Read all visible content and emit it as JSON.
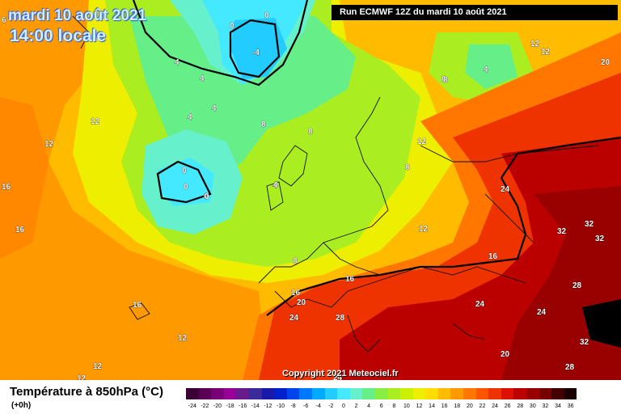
{
  "header": {
    "date_line": "mardi 10 août 2021",
    "time_line": "14:00 locale",
    "run_info": "Run ECMWF 12Z du mardi 10 août 2021"
  },
  "footer": {
    "copyright": "Copyright 2021 Meteociel.fr"
  },
  "legend": {
    "title": "Température à 850hPa (°C)",
    "subtitle": "(+0h)",
    "scale": [
      {
        "label": "-24",
        "color": "#3a0033"
      },
      {
        "label": "-22",
        "color": "#5a0055"
      },
      {
        "label": "-20",
        "color": "#7a0077"
      },
      {
        "label": "-18",
        "color": "#990099"
      },
      {
        "label": "-16",
        "color": "#6a1a8a"
      },
      {
        "label": "-14",
        "color": "#3a2a9a"
      },
      {
        "label": "-12",
        "color": "#1a1aaa"
      },
      {
        "label": "-10",
        "color": "#0022cc"
      },
      {
        "label": "-8",
        "color": "#0044ee"
      },
      {
        "label": "-6",
        "color": "#0077ff"
      },
      {
        "label": "-4",
        "color": "#00aaff"
      },
      {
        "label": "-2",
        "color": "#22ccff"
      },
      {
        "label": "0",
        "color": "#44e8ff"
      },
      {
        "label": "2",
        "color": "#66f0cc"
      },
      {
        "label": "4",
        "color": "#66ee88"
      },
      {
        "label": "6",
        "color": "#88ee44"
      },
      {
        "label": "8",
        "color": "#aaee22"
      },
      {
        "label": "10",
        "color": "#ccf000"
      },
      {
        "label": "12",
        "color": "#eeee00"
      },
      {
        "label": "14",
        "color": "#ffdd00"
      },
      {
        "label": "16",
        "color": "#ffbb00"
      },
      {
        "label": "18",
        "color": "#ff9900"
      },
      {
        "label": "20",
        "color": "#ff7700"
      },
      {
        "label": "22",
        "color": "#ff5500"
      },
      {
        "label": "24",
        "color": "#ee3300"
      },
      {
        "label": "26",
        "color": "#dd1100"
      },
      {
        "label": "28",
        "color": "#bb0000"
      },
      {
        "label": "30",
        "color": "#990000"
      },
      {
        "label": "32",
        "color": "#770000"
      },
      {
        "label": "34",
        "color": "#440000"
      },
      {
        "label": "36",
        "color": "#1a0000"
      }
    ]
  },
  "isotherm_labels": [
    "6",
    "0",
    "4",
    "-4",
    "0",
    "4",
    "12",
    "4",
    "4",
    "4",
    "8",
    "4",
    "8",
    "12",
    "20",
    "12",
    "12",
    "8",
    "8",
    "0",
    "0",
    "0",
    "4",
    "8",
    "12",
    "12",
    "16",
    "16",
    "8",
    "16",
    "16",
    "12",
    "24",
    "32",
    "32",
    "32",
    "24",
    "20",
    "28",
    "24",
    "24",
    "28",
    "16",
    "16",
    "12",
    "12",
    "24",
    "32",
    "20",
    "28",
    "0"
  ]
}
